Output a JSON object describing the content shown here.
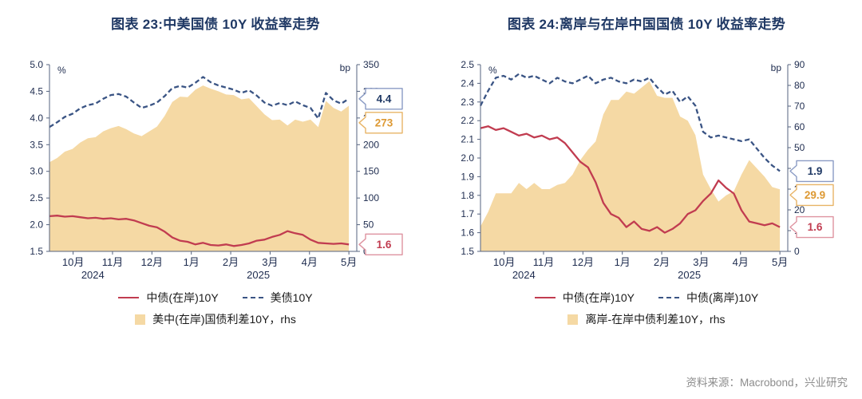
{
  "page": {
    "source_note": "资料来源：Macrobond，兴业研究",
    "colors": {
      "title_navy": "#1F3864",
      "line_red": "#C13C50",
      "line_navy_dashed": "#3A5484",
      "area_tan": "#F5D9A4",
      "source_gray": "#8C8C8C"
    }
  },
  "chart_data": [
    {
      "type": "line+area",
      "title": "图表 23:中美国债 10Y 收益率走势",
      "left_axis": {
        "label": "%",
        "min": 1.5,
        "max": 5.0,
        "ticks": [
          "5.0",
          "4.5",
          "4.0",
          "3.5",
          "3.0",
          "2.5",
          "2.0",
          "1.5"
        ]
      },
      "right_axis": {
        "label": "bp",
        "min": 0,
        "max": 350,
        "ticks": [
          "350",
          "300",
          "250",
          "200",
          "150",
          "100",
          "50",
          "0"
        ]
      },
      "x_axis": {
        "domain": [
          -0.6,
          7.2
        ],
        "tick_positions": [
          0,
          1,
          2,
          3,
          4,
          5,
          6,
          7
        ],
        "tick_labels": [
          "10月",
          "11月",
          "12月",
          "1月",
          "2月",
          "3月",
          "4月",
          "5月"
        ],
        "year_labels": [
          {
            "text": "2024",
            "pos": 0.5
          },
          {
            "text": "2025",
            "pos": 4.7
          }
        ]
      },
      "x_range": [
        -0.6,
        7.0
      ],
      "series": [
        {
          "name": "美中(在岸)国债利差10Y，rhs",
          "type": "area",
          "axis": "right",
          "color": "#F5D9A4",
          "values": [
            167,
            175,
            187,
            192,
            204,
            212,
            214,
            225,
            231,
            235,
            229,
            221,
            216,
            225,
            234,
            254,
            280,
            290,
            289,
            303,
            311,
            305,
            300,
            294,
            293,
            285,
            287,
            272,
            257,
            246,
            247,
            236,
            247,
            243,
            247,
            233,
            282,
            269,
            262,
            273
          ]
        },
        {
          "name": "中债(在岸)10Y",
          "type": "line",
          "style": "solid",
          "axis": "left",
          "color": "#C13C50",
          "values": [
            2.16,
            2.17,
            2.15,
            2.16,
            2.14,
            2.12,
            2.13,
            2.11,
            2.12,
            2.1,
            2.11,
            2.08,
            2.03,
            1.98,
            1.95,
            1.87,
            1.76,
            1.7,
            1.68,
            1.63,
            1.66,
            1.62,
            1.61,
            1.63,
            1.6,
            1.62,
            1.65,
            1.7,
            1.72,
            1.77,
            1.81,
            1.88,
            1.84,
            1.81,
            1.72,
            1.66,
            1.65,
            1.64,
            1.65,
            1.63
          ]
        },
        {
          "name": "美债10Y",
          "type": "line",
          "style": "dashed",
          "axis": "left",
          "color": "#3A5484",
          "values": [
            3.83,
            3.92,
            4.02,
            4.08,
            4.18,
            4.24,
            4.27,
            4.36,
            4.43,
            4.45,
            4.4,
            4.29,
            4.19,
            4.23,
            4.29,
            4.41,
            4.56,
            4.6,
            4.57,
            4.66,
            4.77,
            4.67,
            4.61,
            4.57,
            4.53,
            4.47,
            4.52,
            4.42,
            4.29,
            4.23,
            4.28,
            4.24,
            4.31,
            4.24,
            4.19,
            3.99,
            4.47,
            4.33,
            4.27,
            4.36
          ]
        }
      ],
      "callouts": [
        {
          "text": "4.4",
          "axis": "left",
          "value": 4.36,
          "text_color": "#1F3864",
          "border_color": "#8A9BC4"
        },
        {
          "text": "273",
          "axis": "right",
          "value": 273,
          "text_color": "#DD9933",
          "border_color": "#E8B466"
        },
        {
          "text": "1.6",
          "axis": "left",
          "value": 1.63,
          "text_color": "#C13C50",
          "border_color": "#DE93A0"
        }
      ],
      "legend": [
        "中债(在岸)10Y",
        "美债10Y",
        "美中(在岸)国债利差10Y，rhs"
      ]
    },
    {
      "type": "line+area",
      "title": "图表 24:离岸与在岸中国国债 10Y 收益率走势",
      "left_axis": {
        "label": "%",
        "min": 1.5,
        "max": 2.5,
        "ticks": [
          "2.5",
          "2.4",
          "2.3",
          "2.2",
          "2.1",
          "2.0",
          "1.9",
          "1.8",
          "1.7",
          "1.6",
          "1.5"
        ]
      },
      "right_axis": {
        "label": "bp",
        "min": 0,
        "max": 90,
        "ticks": [
          "90",
          "80",
          "70",
          "60",
          "50",
          "40",
          "30",
          "20",
          "10",
          "0"
        ]
      },
      "x_axis": {
        "domain": [
          -0.6,
          7.2
        ],
        "tick_positions": [
          0,
          1,
          2,
          3,
          4,
          5,
          6,
          7
        ],
        "tick_labels": [
          "10月",
          "11月",
          "12月",
          "1月",
          "2月",
          "3月",
          "4月",
          "5月"
        ],
        "year_labels": [
          {
            "text": "2024",
            "pos": 0.5
          },
          {
            "text": "2025",
            "pos": 4.7
          }
        ]
      },
      "x_range": [
        -0.6,
        7.0
      ],
      "series": [
        {
          "name": "离岸-在岸中债利差10Y，rhs",
          "type": "area",
          "axis": "right",
          "color": "#F5D9A4",
          "values": [
            12,
            19,
            28,
            28,
            28,
            33,
            30,
            33,
            30,
            30,
            32,
            33,
            37,
            44,
            49,
            53,
            66,
            73,
            73,
            77,
            76,
            79,
            82,
            75,
            74,
            74,
            65,
            63,
            56,
            37,
            30,
            24,
            27,
            29,
            37,
            44,
            40,
            36,
            31,
            29.9
          ]
        },
        {
          "name": "中债(在岸)10Y",
          "type": "line",
          "style": "solid",
          "axis": "left",
          "color": "#C13C50",
          "values": [
            2.16,
            2.17,
            2.15,
            2.16,
            2.14,
            2.12,
            2.13,
            2.11,
            2.12,
            2.1,
            2.11,
            2.08,
            2.03,
            1.98,
            1.95,
            1.87,
            1.76,
            1.7,
            1.68,
            1.63,
            1.66,
            1.62,
            1.61,
            1.63,
            1.6,
            1.62,
            1.65,
            1.7,
            1.72,
            1.77,
            1.81,
            1.88,
            1.84,
            1.81,
            1.72,
            1.66,
            1.65,
            1.64,
            1.65,
            1.63
          ]
        },
        {
          "name": "中债(离岸)10Y",
          "type": "line",
          "style": "dashed",
          "axis": "left",
          "color": "#3A5484",
          "values": [
            2.28,
            2.36,
            2.43,
            2.44,
            2.42,
            2.45,
            2.43,
            2.44,
            2.42,
            2.4,
            2.43,
            2.41,
            2.4,
            2.42,
            2.44,
            2.4,
            2.42,
            2.43,
            2.41,
            2.4,
            2.42,
            2.41,
            2.43,
            2.38,
            2.34,
            2.36,
            2.3,
            2.33,
            2.28,
            2.14,
            2.11,
            2.12,
            2.11,
            2.1,
            2.09,
            2.1,
            2.05,
            2.0,
            1.96,
            1.93
          ]
        }
      ],
      "callouts": [
        {
          "text": "1.9",
          "axis": "left",
          "value": 1.93,
          "text_color": "#1F3864",
          "border_color": "#8A9BC4"
        },
        {
          "text": "29.9",
          "axis": "right",
          "value": 29.9,
          "text_color": "#DD9933",
          "border_color": "#E8B466"
        },
        {
          "text": "1.6",
          "axis": "left",
          "value": 1.63,
          "text_color": "#C13C50",
          "border_color": "#DE93A0"
        }
      ],
      "legend": [
        "中债(在岸)10Y",
        "中债(离岸)10Y",
        "离岸-在岸中债利差10Y，rhs"
      ]
    }
  ]
}
